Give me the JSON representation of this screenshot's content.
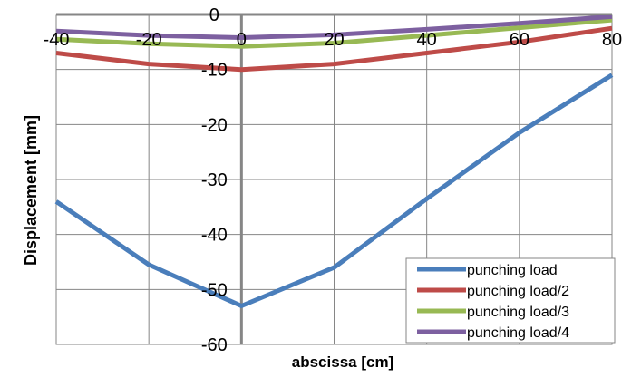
{
  "chart_data": {
    "type": "line",
    "xlabel": "abscissa [cm]",
    "ylabel": "Displacement [mm]",
    "xlim": [
      -40,
      80
    ],
    "ylim": [
      -60,
      0
    ],
    "x_ticks": [
      -40,
      -20,
      0,
      20,
      40,
      60,
      80
    ],
    "y_ticks": [
      0,
      -10,
      -20,
      -30,
      -40,
      -50,
      -60
    ],
    "x_tick_labels": [
      "-40",
      "-20",
      "0",
      "20",
      "40",
      "60",
      "80"
    ],
    "y_tick_labels": [
      "0",
      "-10",
      "-20",
      "-30",
      "-40",
      "-50",
      "-60"
    ],
    "grid": true,
    "legend_position": "bottom-right",
    "x": [
      -40,
      -20,
      0,
      20,
      40,
      60,
      80
    ],
    "series": [
      {
        "name": "punching load",
        "color": "#4a7ebb",
        "values": [
          -34,
          -45.5,
          -53,
          -46,
          -33.5,
          -21.5,
          -11
        ]
      },
      {
        "name": "punching load/2",
        "color": "#be4b48",
        "values": [
          -7,
          -9,
          -10,
          -9,
          -7,
          -5,
          -2.5
        ]
      },
      {
        "name": "punching load/3",
        "color": "#98b954",
        "values": [
          -4.5,
          -5.3,
          -5.8,
          -5.2,
          -3.8,
          -2.4,
          -1
        ]
      },
      {
        "name": "punching load/4",
        "color": "#7d60a0",
        "values": [
          -3,
          -3.8,
          -4.2,
          -3.7,
          -2.7,
          -1.6,
          -0.4
        ]
      }
    ]
  }
}
